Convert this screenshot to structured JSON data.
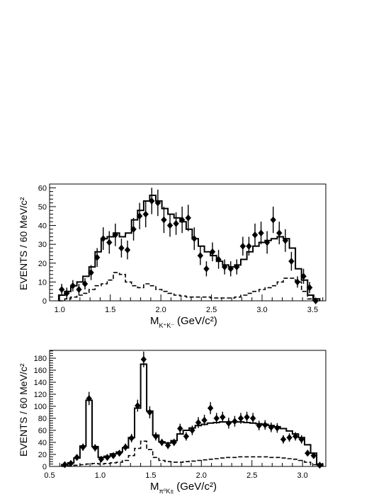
{
  "panels": [
    {
      "id": "top",
      "ylabel": "EVENTS / 60 MeV/c²",
      "xlabel_main": "M",
      "xlabel_sub": "K⁺K⁻",
      "xlabel_unit": "(GeV/c²)",
      "xlim": [
        0.9,
        3.63
      ],
      "ylim": [
        0,
        62
      ],
      "xticks": [
        {
          "v": 1.0,
          "label": "1.0"
        },
        {
          "v": 1.5,
          "label": "1.5"
        },
        {
          "v": 2.0,
          "label": "2.0"
        },
        {
          "v": 2.5,
          "label": "2.5"
        },
        {
          "v": 3.0,
          "label": "3.0"
        },
        {
          "v": 3.5,
          "label": "3.5"
        }
      ],
      "yticks": [
        {
          "v": 0,
          "label": "0"
        },
        {
          "v": 10,
          "label": "10"
        },
        {
          "v": 20,
          "label": "20"
        },
        {
          "v": 30,
          "label": "30"
        },
        {
          "v": 40,
          "label": "40"
        },
        {
          "v": 50,
          "label": "50"
        },
        {
          "v": 60,
          "label": "60"
        }
      ]
    },
    {
      "id": "bottom",
      "ylabel": "EVENTS / 60 MeV/c²",
      "xlabel_main": "M",
      "xlabel_sub": "π⁰K±",
      "xlabel_unit": "(GeV/c²)",
      "xlim": [
        0.5,
        3.23
      ],
      "ylim": [
        0,
        193
      ],
      "xticks": [
        {
          "v": 0.5,
          "label": "0.5"
        },
        {
          "v": 1.0,
          "label": "1.0"
        },
        {
          "v": 1.5,
          "label": "1.5"
        },
        {
          "v": 2.0,
          "label": "2.0"
        },
        {
          "v": 2.5,
          "label": "2.5"
        },
        {
          "v": 3.0,
          "label": "3.0"
        }
      ],
      "yticks": [
        {
          "v": 0,
          "label": "0"
        },
        {
          "v": 20,
          "label": "20"
        },
        {
          "v": 40,
          "label": "40"
        },
        {
          "v": 60,
          "label": "60"
        },
        {
          "v": 80,
          "label": "80"
        },
        {
          "v": 100,
          "label": "100"
        },
        {
          "v": 120,
          "label": "120"
        },
        {
          "v": 140,
          "label": "140"
        },
        {
          "v": 160,
          "label": "160"
        },
        {
          "v": 180,
          "label": "180"
        }
      ]
    }
  ],
  "chart_data": [
    {
      "type": "scatter",
      "title": "",
      "xlabel": "M_{K⁺K⁻} (GeV/c²)",
      "ylabel": "EVENTS / 60 MeV/c²",
      "xlim": [
        0.9,
        3.63
      ],
      "ylim": [
        0,
        62
      ],
      "data_points": {
        "x": [
          1.02,
          1.07,
          1.13,
          1.19,
          1.25,
          1.31,
          1.37,
          1.43,
          1.49,
          1.55,
          1.61,
          1.67,
          1.73,
          1.79,
          1.85,
          1.91,
          1.97,
          2.03,
          2.09,
          2.15,
          2.21,
          2.27,
          2.33,
          2.39,
          2.45,
          2.51,
          2.57,
          2.63,
          2.69,
          2.75,
          2.81,
          2.87,
          2.93,
          2.99,
          3.05,
          3.11,
          3.17,
          3.23,
          3.29,
          3.35,
          3.41,
          3.47,
          3.53
        ],
        "y": [
          6,
          4,
          8,
          6,
          9,
          15,
          23,
          33,
          31,
          35,
          28,
          27,
          38,
          45,
          46,
          53,
          52,
          43,
          40,
          41,
          43,
          44,
          33,
          24,
          17,
          26,
          22,
          18,
          17,
          18,
          29,
          29,
          35,
          36,
          31,
          43,
          36,
          32,
          21,
          10,
          13,
          7,
          0
        ],
        "yerr": [
          3,
          3,
          3,
          3,
          3,
          4,
          5,
          6,
          6,
          6,
          5,
          5,
          6,
          7,
          7,
          7,
          7,
          7,
          6,
          6,
          7,
          7,
          6,
          5,
          4,
          5,
          5,
          4,
          4,
          4,
          5,
          5,
          6,
          6,
          6,
          7,
          6,
          6,
          5,
          3,
          4,
          3,
          0
        ]
      },
      "series": [
        {
          "name": "",
          "style": "solid-histogram",
          "bin_edges": [
            0.99,
            1.05,
            1.11,
            1.17,
            1.23,
            1.29,
            1.35,
            1.41,
            1.47,
            1.53,
            1.59,
            1.65,
            1.71,
            1.77,
            1.83,
            1.89,
            1.95,
            2.01,
            2.07,
            2.13,
            2.19,
            2.25,
            2.31,
            2.37,
            2.43,
            2.49,
            2.55,
            2.61,
            2.67,
            2.73,
            2.79,
            2.85,
            2.91,
            2.97,
            3.03,
            3.09,
            3.15,
            3.21,
            3.27,
            3.33,
            3.39,
            3.45,
            3.51,
            3.57
          ],
          "values": [
            3,
            5,
            8,
            10,
            13,
            18,
            26,
            33,
            34,
            36,
            34,
            36,
            43,
            48,
            53,
            56,
            53,
            49,
            46,
            44,
            42,
            38,
            33,
            29,
            26,
            24,
            21,
            19,
            18,
            19,
            22,
            26,
            29,
            31,
            32,
            33,
            34,
            33,
            28,
            17,
            11,
            3,
            1
          ]
        },
        {
          "name": "",
          "style": "dashed-histogram",
          "bin_edges": [
            0.99,
            1.05,
            1.11,
            1.17,
            1.23,
            1.29,
            1.35,
            1.41,
            1.47,
            1.53,
            1.59,
            1.65,
            1.71,
            1.77,
            1.83,
            1.89,
            1.95,
            2.01,
            2.07,
            2.13,
            2.19,
            2.25,
            2.31,
            2.37,
            2.43,
            2.49,
            2.55,
            2.61,
            2.67,
            2.73,
            2.79,
            2.85,
            2.91,
            2.97,
            3.03,
            3.09,
            3.15,
            3.21,
            3.27,
            3.33,
            3.39,
            3.45,
            3.51,
            3.57
          ],
          "values": [
            0,
            1,
            2,
            3,
            4,
            6,
            8,
            9,
            11,
            15,
            14,
            10,
            8,
            7,
            9,
            8,
            6,
            5,
            4,
            3,
            2.5,
            2,
            2,
            2,
            2,
            1.5,
            1.5,
            1.5,
            1.5,
            2,
            3,
            4,
            5,
            6,
            7,
            8,
            10,
            12,
            12,
            10,
            5,
            1,
            0
          ]
        }
      ]
    },
    {
      "type": "scatter",
      "title": "",
      "xlabel": "M_{π⁰K±} (GeV/c²)",
      "ylabel": "EVENTS / 60 MeV/c²",
      "xlim": [
        0.5,
        3.23
      ],
      "ylim": [
        0,
        193
      ],
      "data_points": {
        "x": [
          0.65,
          0.71,
          0.77,
          0.83,
          0.89,
          0.95,
          1.01,
          1.07,
          1.13,
          1.19,
          1.25,
          1.31,
          1.37,
          1.43,
          1.49,
          1.55,
          1.61,
          1.67,
          1.73,
          1.79,
          1.85,
          1.91,
          1.97,
          2.03,
          2.09,
          2.15,
          2.21,
          2.27,
          2.33,
          2.39,
          2.45,
          2.51,
          2.57,
          2.63,
          2.69,
          2.75,
          2.81,
          2.87,
          2.93,
          2.99,
          3.05,
          3.11,
          3.17
        ],
        "y": [
          3,
          5,
          15,
          32,
          113,
          31,
          12,
          15,
          18,
          22,
          32,
          47,
          101,
          178,
          90,
          50,
          40,
          35,
          40,
          63,
          50,
          60,
          73,
          77,
          97,
          80,
          82,
          72,
          75,
          80,
          82,
          80,
          68,
          69,
          65,
          64,
          45,
          48,
          50,
          45,
          22,
          18,
          2
        ],
        "yerr": [
          2,
          3,
          4,
          6,
          11,
          6,
          4,
          4,
          5,
          5,
          6,
          7,
          10,
          13,
          10,
          7,
          6,
          6,
          6,
          8,
          7,
          8,
          9,
          9,
          10,
          9,
          9,
          9,
          9,
          9,
          9,
          9,
          8,
          8,
          8,
          8,
          7,
          7,
          7,
          7,
          5,
          4,
          2
        ]
      },
      "series": [
        {
          "name": "",
          "style": "solid-histogram",
          "bin_edges": [
            0.62,
            0.68,
            0.74,
            0.8,
            0.86,
            0.92,
            0.98,
            1.04,
            1.1,
            1.16,
            1.22,
            1.28,
            1.34,
            1.4,
            1.46,
            1.52,
            1.58,
            1.64,
            1.7,
            1.76,
            1.82,
            1.88,
            1.94,
            2.0,
            2.06,
            2.12,
            2.18,
            2.24,
            2.3,
            2.36,
            2.42,
            2.48,
            2.54,
            2.6,
            2.66,
            2.72,
            2.78,
            2.84,
            2.9,
            2.96,
            3.02,
            3.08,
            3.14,
            3.2
          ],
          "values": [
            3,
            6,
            14,
            34,
            110,
            33,
            15,
            17,
            21,
            24,
            31,
            48,
            97,
            170,
            92,
            52,
            41,
            39,
            43,
            54,
            60,
            64,
            68,
            70,
            72,
            73,
            74,
            74,
            74,
            74,
            73,
            72,
            71,
            70,
            68,
            66,
            63,
            59,
            54,
            48,
            36,
            22,
            4
          ]
        },
        {
          "name": "",
          "style": "dashed-histogram",
          "bin_edges": [
            0.62,
            0.68,
            0.74,
            0.8,
            0.86,
            0.92,
            0.98,
            1.04,
            1.1,
            1.16,
            1.22,
            1.28,
            1.34,
            1.4,
            1.46,
            1.52,
            1.58,
            1.64,
            1.7,
            1.76,
            1.82,
            1.88,
            1.94,
            2.0,
            2.06,
            2.12,
            2.18,
            2.24,
            2.3,
            2.36,
            2.42,
            2.48,
            2.54,
            2.6,
            2.66,
            2.72,
            2.78,
            2.84,
            2.9,
            2.96,
            3.02,
            3.08,
            3.14,
            3.2
          ],
          "values": [
            0,
            1,
            2,
            3,
            4,
            5,
            4,
            5,
            6,
            7,
            10,
            18,
            30,
            42,
            28,
            15,
            10,
            8,
            7,
            7,
            8,
            9,
            10,
            11,
            12,
            13,
            14,
            15,
            15,
            16,
            16,
            16,
            16,
            16,
            15,
            15,
            14,
            13,
            12,
            10,
            7,
            3,
            0
          ]
        }
      ]
    }
  ]
}
